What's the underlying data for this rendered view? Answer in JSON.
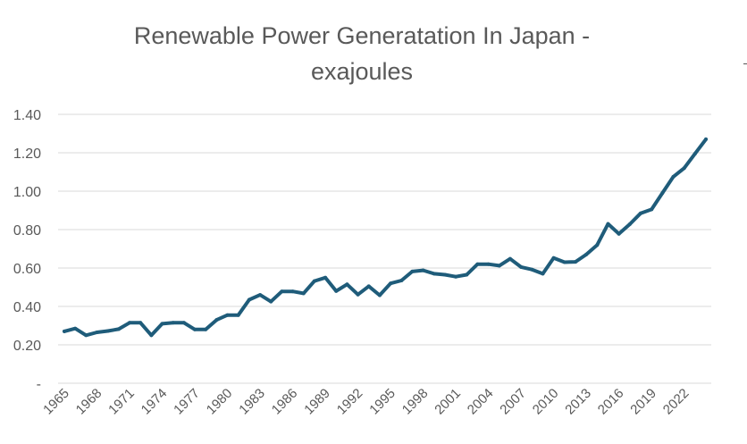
{
  "chart_data": {
    "type": "line",
    "title": "Renewable Power Generatation In Japan - exajoules",
    "title_lines": [
      "Renewable Power Generatation In Japan -",
      "exajoules"
    ],
    "xlabel": "",
    "ylabel": "",
    "ylim": [
      0,
      1.4
    ],
    "yticks": [
      "-",
      "0.20",
      "0.40",
      "0.60",
      "0.80",
      "1.00",
      "1.20",
      "1.40"
    ],
    "xtick_labels": [
      "1965",
      "1968",
      "1971",
      "1974",
      "1977",
      "1980",
      "1983",
      "1986",
      "1989",
      "1992",
      "1995",
      "1998",
      "2001",
      "2004",
      "2007",
      "2010",
      "2013",
      "2016",
      "2019",
      "2022"
    ],
    "grid": true,
    "legend": "none",
    "line_color": "#1f5c7a",
    "series": [
      {
        "name": "Renewable Power Generation",
        "x": [
          1965,
          1966,
          1967,
          1968,
          1969,
          1970,
          1971,
          1972,
          1973,
          1974,
          1975,
          1976,
          1977,
          1978,
          1979,
          1980,
          1981,
          1982,
          1983,
          1984,
          1985,
          1986,
          1987,
          1988,
          1989,
          1990,
          1991,
          1992,
          1993,
          1994,
          1995,
          1996,
          1997,
          1998,
          1999,
          2000,
          2001,
          2002,
          2003,
          2004,
          2005,
          2006,
          2007,
          2008,
          2009,
          2010,
          2011,
          2012,
          2013,
          2014,
          2015,
          2016,
          2017,
          2018,
          2019,
          2020,
          2021,
          2022,
          2023,
          2024
        ],
        "values": [
          0.27,
          0.285,
          0.25,
          0.265,
          0.272,
          0.282,
          0.315,
          0.315,
          0.25,
          0.31,
          0.315,
          0.315,
          0.28,
          0.28,
          0.33,
          0.355,
          0.355,
          0.435,
          0.46,
          0.425,
          0.478,
          0.478,
          0.468,
          0.532,
          0.55,
          0.48,
          0.515,
          0.462,
          0.505,
          0.458,
          0.52,
          0.535,
          0.582,
          0.588,
          0.57,
          0.565,
          0.555,
          0.565,
          0.62,
          0.62,
          0.612,
          0.648,
          0.605,
          0.592,
          0.57,
          0.652,
          0.63,
          0.632,
          0.67,
          0.72,
          0.83,
          0.778,
          0.828,
          0.885,
          0.905,
          0.99,
          1.075,
          1.12,
          1.195,
          1.27
        ]
      }
    ]
  }
}
